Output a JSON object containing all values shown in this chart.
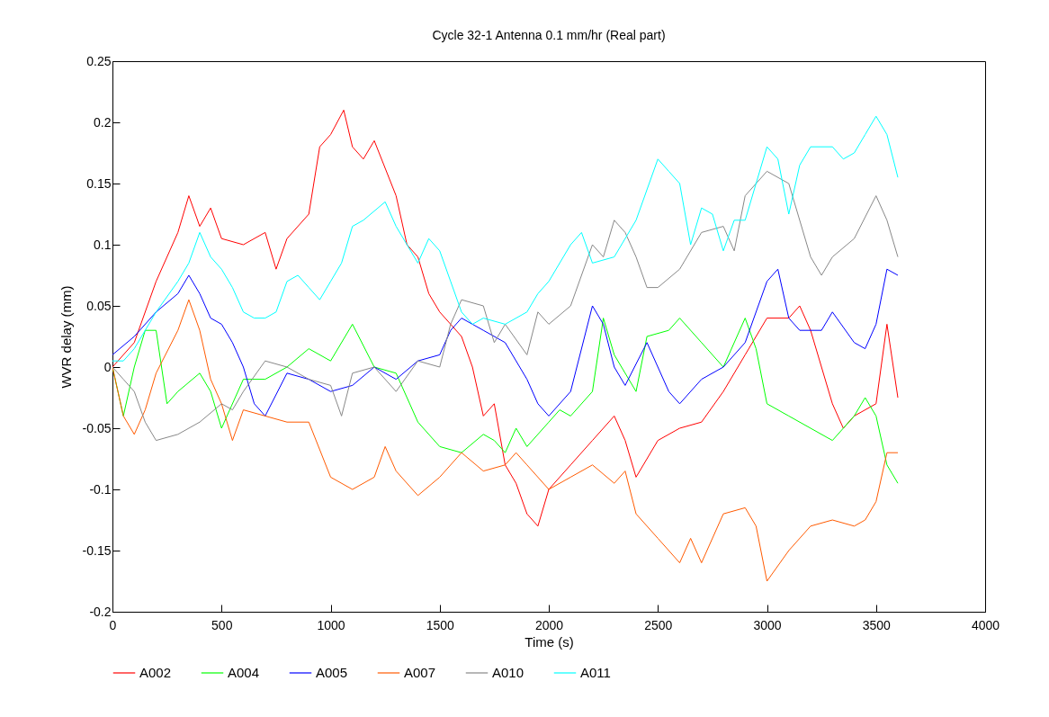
{
  "chart_data": {
    "type": "line",
    "title": "Cycle 32-1 Antenna 0.1 mm/hr (Real part)",
    "xlabel": "Time (s)",
    "ylabel": "WVR delay (mm)",
    "xlim": [
      0,
      4000
    ],
    "xticks": [
      0,
      500,
      1000,
      1500,
      2000,
      2500,
      3000,
      3500,
      4000
    ],
    "ylim": [
      -0.2,
      0.25
    ],
    "yticks": [
      -0.2,
      -0.15,
      -0.1,
      -0.05,
      0,
      0.05,
      0.1,
      0.15,
      0.2,
      0.25
    ],
    "grid": false,
    "legend": "bottom",
    "line_style": "solid",
    "series": [
      {
        "name": "A002",
        "color": "#ff0000",
        "x": [
          0,
          100,
          200,
          300,
          350,
          400,
          450,
          500,
          600,
          700,
          750,
          800,
          900,
          950,
          1000,
          1060,
          1100,
          1150,
          1200,
          1300,
          1350,
          1400,
          1450,
          1500,
          1600,
          1650,
          1700,
          1750,
          1800,
          1850,
          1900,
          1950,
          2000,
          2100,
          2200,
          2300,
          2350,
          2400,
          2500,
          2600,
          2700,
          2800,
          2900,
          3000,
          3100,
          3150,
          3200,
          3300,
          3350,
          3400,
          3500,
          3550,
          3600
        ],
        "values": [
          0,
          0.02,
          0.07,
          0.11,
          0.14,
          0.115,
          0.13,
          0.105,
          0.1,
          0.11,
          0.08,
          0.105,
          0.125,
          0.18,
          0.19,
          0.21,
          0.18,
          0.17,
          0.185,
          0.14,
          0.1,
          0.09,
          0.06,
          0.045,
          0.025,
          0,
          -0.04,
          -0.03,
          -0.08,
          -0.095,
          -0.12,
          -0.13,
          -0.1,
          -0.08,
          -0.06,
          -0.04,
          -0.06,
          -0.09,
          -0.06,
          -0.05,
          -0.045,
          -0.02,
          0.01,
          0.04,
          0.04,
          0.05,
          0.03,
          -0.03,
          -0.05,
          -0.04,
          -0.03,
          0.035,
          -0.025
        ]
      },
      {
        "name": "A004",
        "color": "#00ff00",
        "x": [
          0,
          50,
          100,
          150,
          200,
          250,
          300,
          400,
          450,
          500,
          600,
          700,
          800,
          900,
          1000,
          1100,
          1200,
          1300,
          1400,
          1500,
          1600,
          1700,
          1750,
          1800,
          1850,
          1900,
          2000,
          2050,
          2100,
          2200,
          2250,
          2300,
          2400,
          2450,
          2550,
          2600,
          2700,
          2800,
          2900,
          2950,
          3000,
          3100,
          3200,
          3300,
          3400,
          3450,
          3500,
          3550,
          3600
        ],
        "values": [
          0,
          -0.04,
          0,
          0.03,
          0.03,
          -0.03,
          -0.02,
          -0.005,
          -0.02,
          -0.05,
          -0.01,
          -0.01,
          0,
          0.015,
          0.005,
          0.035,
          0,
          -0.005,
          -0.045,
          -0.065,
          -0.07,
          -0.055,
          -0.06,
          -0.07,
          -0.05,
          -0.065,
          -0.045,
          -0.035,
          -0.04,
          -0.02,
          0.04,
          0.01,
          -0.02,
          0.025,
          0.03,
          0.04,
          0.02,
          0,
          0.04,
          0.015,
          -0.03,
          -0.04,
          -0.05,
          -0.06,
          -0.04,
          -0.025,
          -0.04,
          -0.08,
          -0.095
        ]
      },
      {
        "name": "A005",
        "color": "#0000ff",
        "x": [
          0,
          100,
          200,
          300,
          350,
          400,
          450,
          500,
          550,
          600,
          650,
          700,
          800,
          900,
          1000,
          1100,
          1200,
          1300,
          1400,
          1500,
          1550,
          1600,
          1700,
          1800,
          1900,
          1950,
          2000,
          2100,
          2200,
          2250,
          2300,
          2350,
          2450,
          2500,
          2550,
          2600,
          2700,
          2800,
          2900,
          3000,
          3050,
          3100,
          3150,
          3250,
          3300,
          3400,
          3450,
          3500,
          3550,
          3600
        ],
        "values": [
          0.01,
          0.025,
          0.045,
          0.06,
          0.075,
          0.06,
          0.04,
          0.035,
          0.02,
          0,
          -0.03,
          -0.04,
          -0.005,
          -0.01,
          -0.02,
          -0.015,
          0,
          -0.01,
          0.005,
          0.01,
          0.03,
          0.04,
          0.03,
          0.02,
          -0.01,
          -0.03,
          -0.04,
          -0.02,
          0.05,
          0.035,
          0,
          -0.015,
          0.02,
          0,
          -0.02,
          -0.03,
          -0.01,
          0,
          0.02,
          0.07,
          0.08,
          0.04,
          0.03,
          0.03,
          0.045,
          0.02,
          0.015,
          0.035,
          0.08,
          0.075
        ]
      },
      {
        "name": "A007",
        "color": "#ff5a00",
        "x": [
          0,
          50,
          100,
          150,
          200,
          300,
          350,
          400,
          450,
          500,
          550,
          600,
          700,
          800,
          900,
          1000,
          1100,
          1200,
          1250,
          1300,
          1400,
          1500,
          1600,
          1700,
          1800,
          1850,
          1900,
          2000,
          2100,
          2200,
          2300,
          2350,
          2400,
          2500,
          2600,
          2650,
          2700,
          2800,
          2900,
          2950,
          3000,
          3100,
          3200,
          3300,
          3400,
          3450,
          3500,
          3550,
          3600
        ],
        "values": [
          0,
          -0.04,
          -0.055,
          -0.035,
          -0.005,
          0.03,
          0.055,
          0.03,
          -0.01,
          -0.03,
          -0.06,
          -0.035,
          -0.04,
          -0.045,
          -0.045,
          -0.09,
          -0.1,
          -0.09,
          -0.065,
          -0.085,
          -0.105,
          -0.09,
          -0.07,
          -0.085,
          -0.08,
          -0.07,
          -0.08,
          -0.1,
          -0.09,
          -0.08,
          -0.095,
          -0.085,
          -0.12,
          -0.14,
          -0.16,
          -0.14,
          -0.16,
          -0.12,
          -0.115,
          -0.13,
          -0.175,
          -0.15,
          -0.13,
          -0.125,
          -0.13,
          -0.125,
          -0.11,
          -0.07,
          -0.07
        ]
      },
      {
        "name": "A010",
        "color": "#888888",
        "x": [
          0,
          50,
          100,
          150,
          200,
          300,
          400,
          500,
          550,
          600,
          700,
          800,
          900,
          1000,
          1050,
          1100,
          1200,
          1300,
          1400,
          1500,
          1550,
          1600,
          1700,
          1750,
          1800,
          1900,
          1950,
          2000,
          2100,
          2200,
          2250,
          2300,
          2350,
          2400,
          2450,
          2500,
          2600,
          2700,
          2800,
          2850,
          2900,
          3000,
          3100,
          3200,
          3250,
          3300,
          3400,
          3500,
          3550,
          3600
        ],
        "values": [
          0,
          -0.01,
          -0.02,
          -0.045,
          -0.06,
          -0.055,
          -0.045,
          -0.03,
          -0.035,
          -0.02,
          0.005,
          0,
          -0.01,
          -0.015,
          -0.04,
          -0.005,
          0,
          -0.02,
          0.005,
          0,
          0.035,
          0.055,
          0.05,
          0.02,
          0.035,
          0.01,
          0.045,
          0.035,
          0.05,
          0.1,
          0.09,
          0.12,
          0.11,
          0.09,
          0.065,
          0.065,
          0.08,
          0.11,
          0.115,
          0.095,
          0.14,
          0.16,
          0.15,
          0.09,
          0.075,
          0.09,
          0.105,
          0.14,
          0.12,
          0.09
        ]
      },
      {
        "name": "A011",
        "color": "#00ffff",
        "x": [
          0,
          50,
          100,
          200,
          300,
          350,
          400,
          450,
          500,
          550,
          600,
          650,
          700,
          750,
          800,
          850,
          900,
          950,
          1000,
          1050,
          1100,
          1150,
          1250,
          1300,
          1350,
          1400,
          1450,
          1500,
          1550,
          1600,
          1650,
          1700,
          1800,
          1900,
          1950,
          2000,
          2100,
          2150,
          2200,
          2300,
          2400,
          2500,
          2550,
          2600,
          2650,
          2700,
          2750,
          2800,
          2850,
          2900,
          3000,
          3050,
          3100,
          3150,
          3200,
          3300,
          3350,
          3400,
          3450,
          3500,
          3550,
          3600
        ],
        "values": [
          0.005,
          0.005,
          0.015,
          0.045,
          0.07,
          0.085,
          0.11,
          0.09,
          0.08,
          0.065,
          0.045,
          0.04,
          0.04,
          0.045,
          0.07,
          0.075,
          0.065,
          0.055,
          0.07,
          0.085,
          0.115,
          0.12,
          0.135,
          0.115,
          0.1,
          0.085,
          0.105,
          0.095,
          0.07,
          0.045,
          0.035,
          0.04,
          0.035,
          0.045,
          0.06,
          0.07,
          0.1,
          0.11,
          0.085,
          0.09,
          0.12,
          0.17,
          0.16,
          0.15,
          0.1,
          0.13,
          0.125,
          0.095,
          0.12,
          0.12,
          0.18,
          0.17,
          0.125,
          0.165,
          0.18,
          0.18,
          0.17,
          0.175,
          0.19,
          0.205,
          0.19,
          0.155
        ]
      }
    ]
  }
}
